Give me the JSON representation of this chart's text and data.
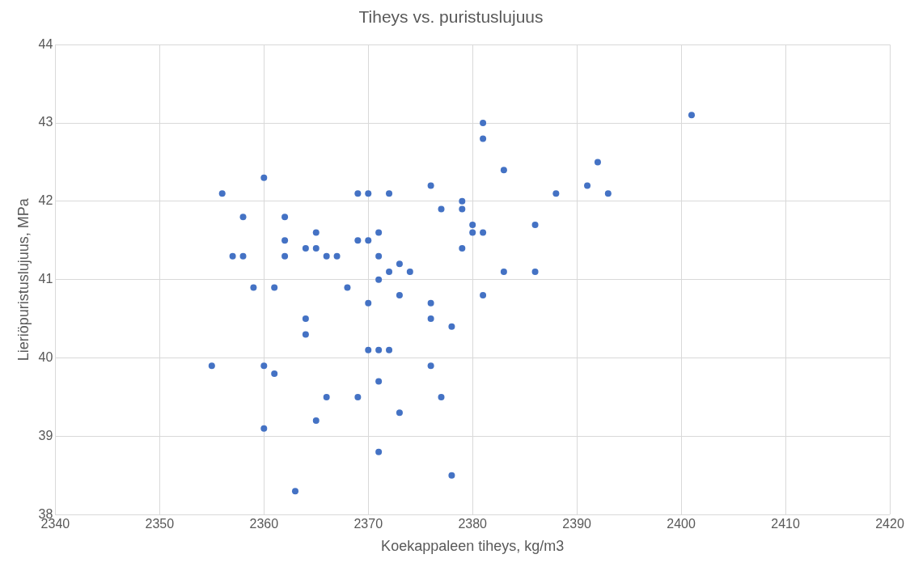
{
  "chart_data": {
    "type": "scatter",
    "title": "Tiheys vs. puristuslujuus",
    "xlabel": "Koekappaleen tiheys, kg/m3",
    "ylabel": "Lieriöpuristuslujuus, MPa",
    "xlim": [
      2340,
      2420
    ],
    "xticks": [
      2340,
      2350,
      2360,
      2370,
      2380,
      2390,
      2400,
      2410,
      2420
    ],
    "ylim": [
      38,
      44
    ],
    "yticks": [
      38,
      39,
      40,
      41,
      42,
      43,
      44
    ],
    "grid": true,
    "legend": false,
    "marker": "circle",
    "series": [
      {
        "color": "#4472c4",
        "x": [
          2356,
          2360,
          2358,
          2357,
          2358,
          2359,
          2355,
          2360,
          2361,
          2360,
          2361,
          2362,
          2362,
          2362,
          2363,
          2364,
          2364,
          2364,
          2365,
          2365,
          2365,
          2366,
          2366,
          2367,
          2368,
          2369,
          2369,
          2369,
          2370,
          2370,
          2370,
          2370,
          2371,
          2371,
          2371,
          2371,
          2371,
          2371,
          2372,
          2372,
          2372,
          2373,
          2373,
          2373,
          2374,
          2376,
          2376,
          2376,
          2376,
          2377,
          2377,
          2378,
          2378,
          2379,
          2379,
          2379,
          2380,
          2380,
          2381,
          2381,
          2381,
          2381,
          2383,
          2383,
          2386,
          2386,
          2388,
          2391,
          2392,
          2393,
          2401
        ],
        "values": [
          42.1,
          42.3,
          41.8,
          41.3,
          41.3,
          40.9,
          39.9,
          39.9,
          39.8,
          39.1,
          40.9,
          41.8,
          41.5,
          41.3,
          38.3,
          41.4,
          40.5,
          40.3,
          41.6,
          41.4,
          39.2,
          41.3,
          39.5,
          41.3,
          40.9,
          42.1,
          41.5,
          39.5,
          42.1,
          41.5,
          40.7,
          40.1,
          41.6,
          41.3,
          41.0,
          40.1,
          39.7,
          38.8,
          42.1,
          41.1,
          40.1,
          41.2,
          40.8,
          39.3,
          41.1,
          42.2,
          40.7,
          40.5,
          39.9,
          41.9,
          39.5,
          40.4,
          38.5,
          42.0,
          41.9,
          41.4,
          41.7,
          41.6,
          43.0,
          42.8,
          41.6,
          40.8,
          42.4,
          41.1,
          41.7,
          41.1,
          42.1,
          42.2,
          42.5,
          42.1,
          43.1
        ]
      }
    ]
  }
}
